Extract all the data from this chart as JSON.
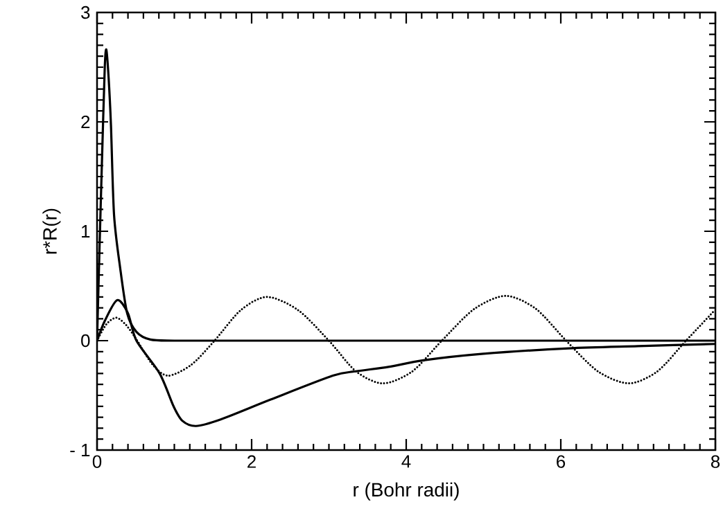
{
  "chart_data": {
    "type": "line",
    "xlabel": "r  (Bohr  radii)",
    "ylabel": "r*R(r)",
    "xlim": [
      0,
      8
    ],
    "ylim": [
      -1,
      3
    ],
    "xticks": [
      0,
      2,
      4,
      6,
      8
    ],
    "yticks": [
      {
        "value": -1,
        "label": "- 1"
      },
      0,
      1,
      2,
      3
    ],
    "grid": false,
    "marker": "none",
    "series": [
      {
        "color": "#000000",
        "line_style": "solid",
        "x": [
          0,
          0.03,
          0.07,
          0.1,
          0.12,
          0.15,
          0.18,
          0.22,
          0.3,
          0.39,
          0.51,
          0.69,
          1,
          2,
          4,
          6,
          8
        ],
        "values": [
          0,
          0.8,
          1.8,
          2.5,
          2.66,
          2.4,
          1.97,
          1.15,
          0.66,
          0.25,
          0.08,
          0.01,
          0,
          0,
          0,
          0,
          0
        ]
      },
      {
        "color": "#000000",
        "line_style": "solid",
        "x": [
          0,
          0.1,
          0.26,
          0.4,
          0.51,
          0.81,
          0.99,
          1.1,
          1.28,
          1.6,
          2.24,
          3.05,
          3.35,
          3.77,
          4.22,
          5,
          6.1,
          7,
          8
        ],
        "values": [
          0,
          0.18,
          0.37,
          0.25,
          0,
          -0.3,
          -0.6,
          -0.73,
          -0.78,
          -0.72,
          -0.54,
          -0.32,
          -0.28,
          -0.24,
          -0.18,
          -0.12,
          -0.07,
          -0.05,
          -0.03
        ]
      },
      {
        "color": "#000000",
        "line_style": "dotted",
        "x": [
          0,
          0.12,
          0.25,
          0.38,
          0.52,
          0.72,
          0.92,
          1.22,
          1.52,
          1.86,
          2.2,
          2.6,
          3.0,
          3.35,
          3.7,
          4.08,
          4.46,
          4.88,
          5.29,
          5.68,
          6.07,
          6.48,
          6.88,
          7.25,
          7.62,
          7.98
        ],
        "values": [
          0,
          0.15,
          0.21,
          0.14,
          0,
          -0.22,
          -0.32,
          -0.22,
          0,
          0.28,
          0.4,
          0.28,
          0,
          -0.28,
          -0.39,
          -0.28,
          0,
          0.29,
          0.41,
          0.29,
          0,
          -0.28,
          -0.39,
          -0.28,
          0,
          0.27
        ]
      }
    ]
  }
}
